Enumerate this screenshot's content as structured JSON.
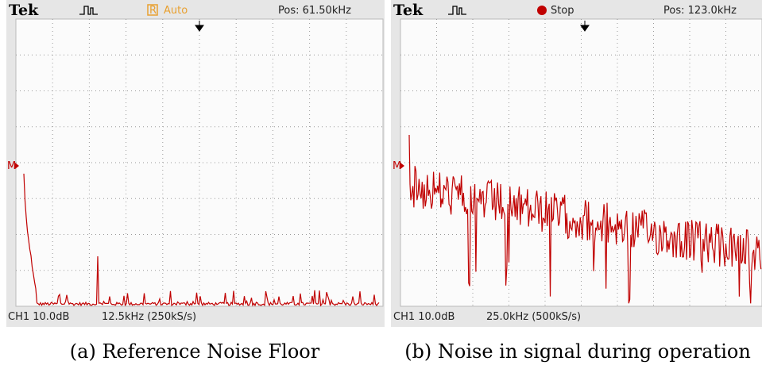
{
  "panels": [
    {
      "brand": "Tek",
      "status": "Auto",
      "position": "Pos: 61.50kHz",
      "marker": "M",
      "channel": "CH1 10.0dB",
      "timebase": "12.5kHz (250kS/s)",
      "caption": "(a) Reference Noise Floor"
    },
    {
      "brand": "Tek",
      "status": "Stop",
      "position": "Pos: 123.0kHz",
      "marker": "M",
      "channel": "CH1 10.0dB",
      "timebase": "25.0kHz (500kS/s)",
      "caption": "(b) Noise in signal during operation"
    }
  ]
}
